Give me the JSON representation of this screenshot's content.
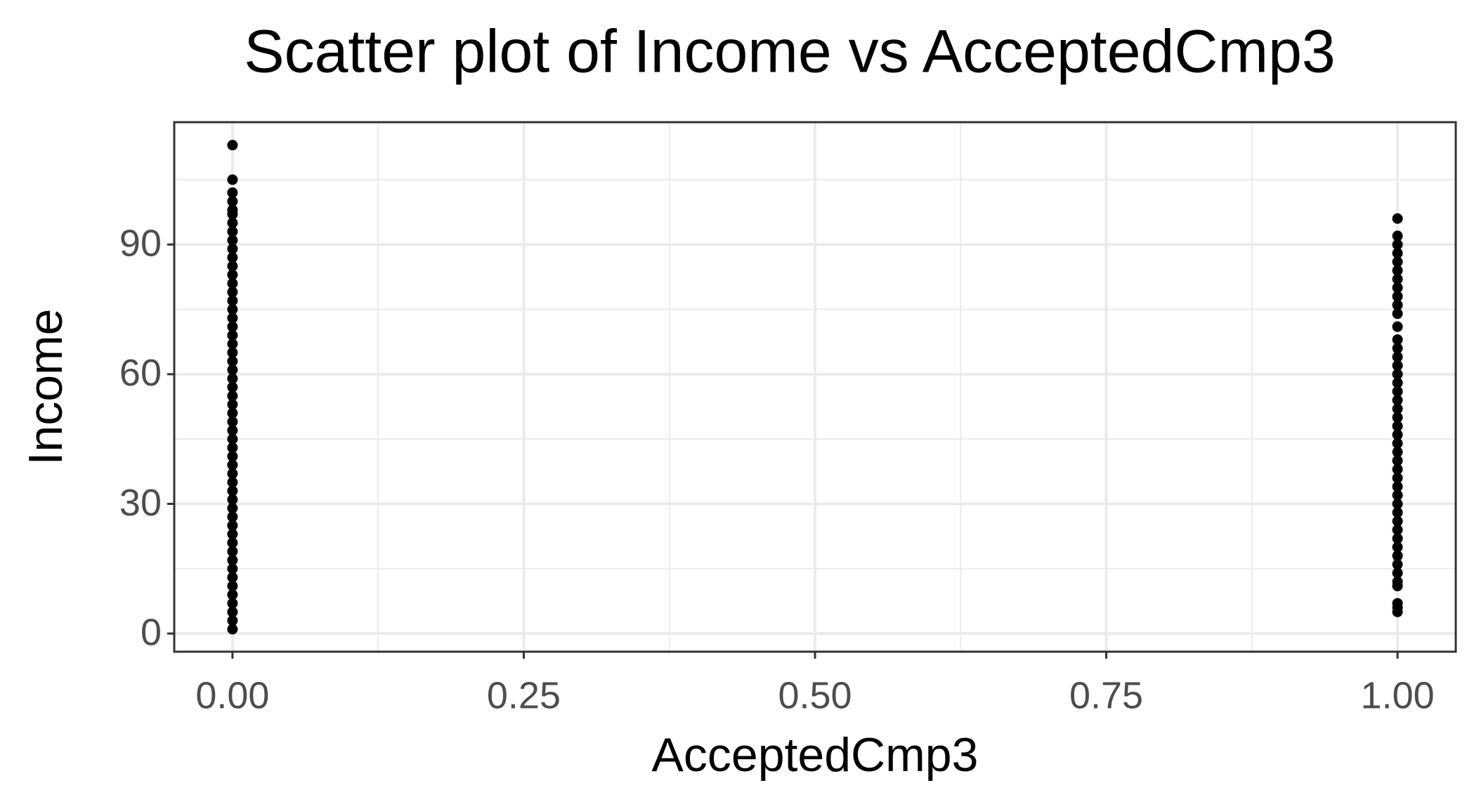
{
  "chart_data": {
    "type": "scatter",
    "title": "Scatter plot of Income vs AcceptedCmp3",
    "x_label": "AcceptedCmp3",
    "y_label": "Income",
    "x": [
      0,
      0,
      0,
      0,
      0,
      0,
      0,
      0,
      0,
      0,
      0,
      0,
      0,
      0,
      0,
      0,
      0,
      0,
      0,
      0,
      0,
      0,
      0,
      0,
      0,
      0,
      0,
      0,
      0,
      0,
      0,
      0,
      0,
      0,
      0,
      0,
      0,
      0,
      0,
      0,
      0,
      0,
      0,
      0,
      0,
      0,
      0,
      0,
      0,
      0,
      0,
      0,
      0,
      0,
      1,
      1,
      1,
      1,
      1,
      1,
      1,
      1,
      1,
      1,
      1,
      1,
      1,
      1,
      1,
      1,
      1,
      1,
      1,
      1,
      1,
      1,
      1,
      1,
      1,
      1,
      1,
      1,
      1,
      1,
      1,
      1,
      1,
      1,
      1,
      1,
      1,
      1,
      1,
      1,
      1,
      1,
      1,
      1,
      1
    ],
    "values": [
      1,
      3,
      5,
      7,
      9,
      11,
      13,
      15,
      17,
      19,
      21,
      23,
      25,
      27,
      29,
      31,
      33,
      35,
      37,
      39,
      41,
      43,
      45,
      47,
      49,
      51,
      53,
      55,
      57,
      59,
      61,
      63,
      65,
      67,
      69,
      71,
      73,
      75,
      77,
      79,
      81,
      83,
      85,
      87,
      89,
      91,
      93,
      95,
      97,
      98,
      100,
      102,
      105,
      113,
      5,
      6,
      7,
      11,
      12,
      14,
      16,
      18,
      20,
      22,
      24,
      26,
      28,
      30,
      32,
      34,
      36,
      38,
      40,
      42,
      44,
      46,
      48,
      50,
      52,
      54,
      56,
      58,
      60,
      62,
      64,
      66,
      68,
      71,
      74,
      76,
      78,
      80,
      82,
      84,
      86,
      88,
      90,
      92,
      96
    ],
    "color": "#000000",
    "xlim": [
      -0.05,
      1.05
    ],
    "xticks": [
      {
        "value": 0,
        "label": "0.00"
      },
      {
        "value": 0.25,
        "label": "0.25"
      },
      {
        "value": 0.5,
        "label": "0.50"
      },
      {
        "value": 0.75,
        "label": "0.75"
      },
      {
        "value": 1,
        "label": "1.00"
      }
    ],
    "x_minor_ticks": [
      0.125,
      0.375,
      0.625,
      0.875
    ],
    "ylim": [
      -4.2,
      118.3
    ],
    "yticks": [
      0,
      30,
      60,
      90
    ],
    "y_minor_ticks": [
      15,
      45,
      75,
      105
    ],
    "grid": true
  }
}
